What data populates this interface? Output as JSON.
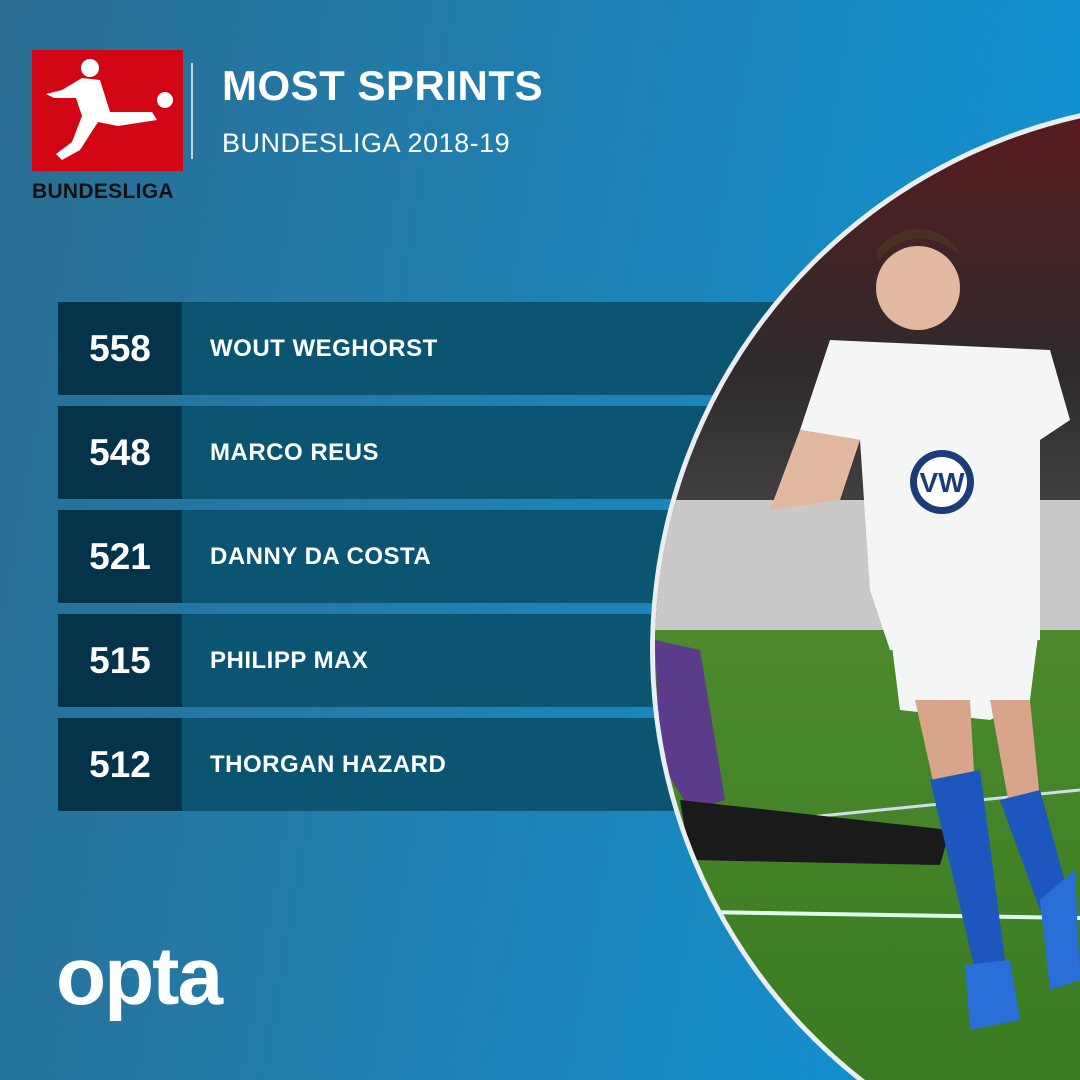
{
  "header": {
    "logo_text": "BUNDESLIGA",
    "title": "MOST SPRINTS",
    "subtitle": "BUNDESLIGA 2018-19"
  },
  "colors": {
    "logo_red": "#d20515",
    "number_box": "#05344a",
    "row_bar": "#0b5573",
    "background": "#1f7fb0"
  },
  "rankings": [
    {
      "value": "558",
      "name": "WOUT WEGHORST"
    },
    {
      "value": "548",
      "name": "MARCO REUS"
    },
    {
      "value": "521",
      "name": "DANNY DA COSTA"
    },
    {
      "value": "515",
      "name": "PHILIPP MAX"
    },
    {
      "value": "512",
      "name": "THORGAN HAZARD"
    }
  ],
  "footer": {
    "brand": "opta"
  }
}
